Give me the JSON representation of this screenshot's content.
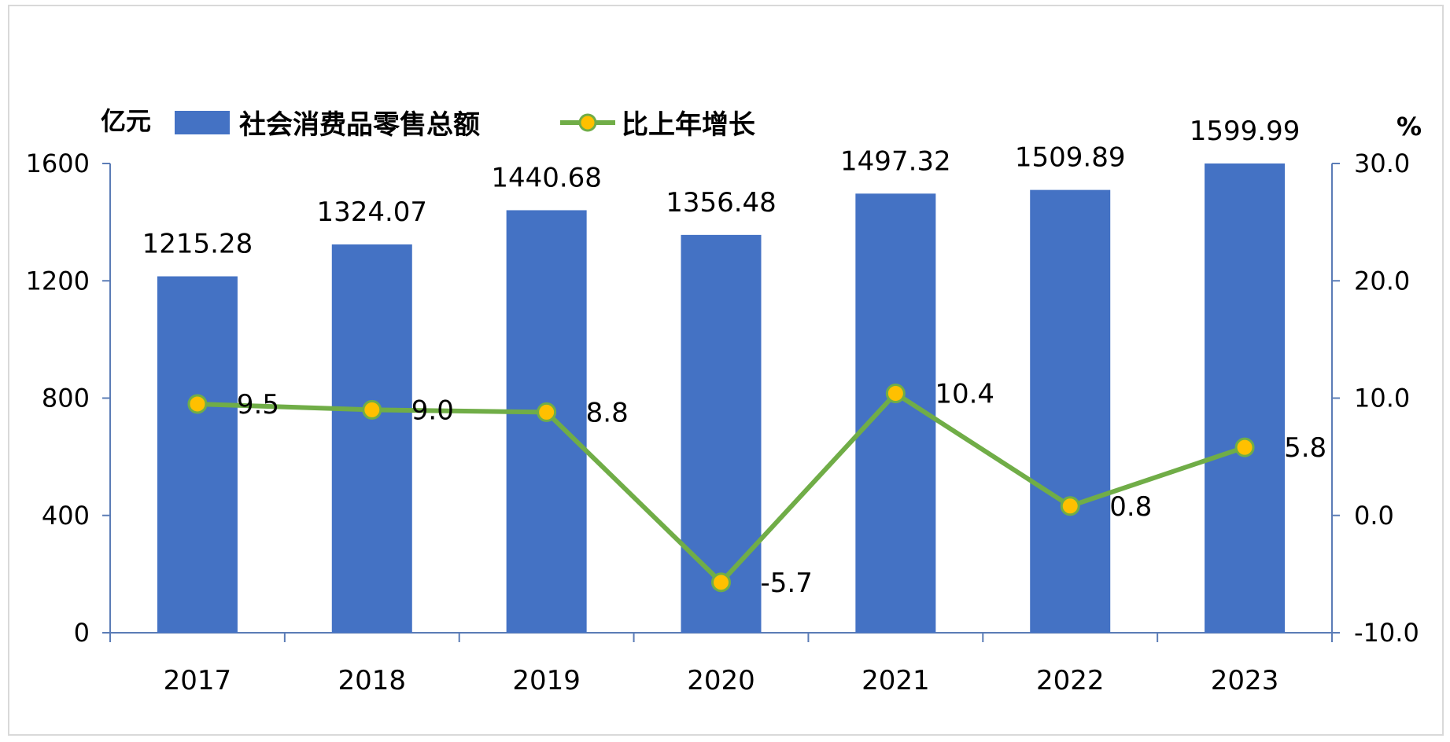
{
  "chart_data": {
    "type": "bar+line",
    "categories": [
      "2017",
      "2018",
      "2019",
      "2020",
      "2021",
      "2022",
      "2023"
    ],
    "series": [
      {
        "name": "社会消费品零售总额",
        "type": "bar",
        "axis": "left",
        "values": [
          1215.28,
          1324.07,
          1440.68,
          1356.48,
          1497.32,
          1509.89,
          1599.99
        ],
        "labels": [
          "1215.28",
          "1324.07",
          "1440.68",
          "1356.48",
          "1497.32",
          "1509.89",
          "1599.99"
        ],
        "color": "#4472C4"
      },
      {
        "name": "比上年增长",
        "type": "line",
        "axis": "right",
        "values": [
          9.5,
          9.0,
          8.8,
          -5.7,
          10.4,
          0.8,
          5.8
        ],
        "labels": [
          "9.5",
          "9.0",
          "8.8",
          "-5.7",
          "10.4",
          "0.8",
          "5.8"
        ],
        "color": "#70AD47",
        "marker_color": "#FFC000"
      }
    ],
    "left_axis": {
      "title": "亿元",
      "range": [
        0,
        1600
      ],
      "ticks": [
        0,
        400,
        800,
        1200,
        1600
      ],
      "tick_labels": [
        "0",
        "400",
        "800",
        "1200",
        "1600"
      ]
    },
    "right_axis": {
      "title": "%",
      "range": [
        -10,
        30
      ],
      "ticks": [
        -10,
        0,
        10,
        20,
        30
      ],
      "tick_labels": [
        "-10.0",
        "0.0",
        "10.0",
        "20.0",
        "30.0"
      ]
    },
    "grid": false,
    "legend": "top"
  }
}
